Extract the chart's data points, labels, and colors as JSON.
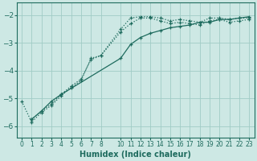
{
  "xlabel": "Humidex (Indice chaleur)",
  "background_color": "#cde8e4",
  "grid_color": "#a0ccc6",
  "line_color": "#1e6b5e",
  "xlim": [
    -0.5,
    23.5
  ],
  "ylim": [
    -6.4,
    -1.55
  ],
  "yticks": [
    -6,
    -5,
    -4,
    -3,
    -2
  ],
  "xticks": [
    0,
    1,
    2,
    3,
    4,
    5,
    6,
    7,
    8,
    10,
    11,
    12,
    13,
    14,
    15,
    16,
    17,
    18,
    19,
    20,
    21,
    22,
    23
  ],
  "curve1_x": [
    0,
    1,
    2,
    3,
    4,
    5,
    6,
    7,
    8,
    10,
    11,
    12,
    13,
    14,
    15,
    16,
    17,
    18,
    19,
    20,
    21,
    22,
    23
  ],
  "curve1_y": [
    -5.1,
    -5.85,
    -5.5,
    -5.25,
    -4.9,
    -4.6,
    -4.35,
    -3.55,
    -3.45,
    -2.5,
    -2.1,
    -2.05,
    -2.05,
    -2.1,
    -2.2,
    -2.15,
    -2.2,
    -2.25,
    -2.1,
    -2.1,
    -2.15,
    -2.1,
    -2.1
  ],
  "curve2_x": [
    1,
    2,
    3,
    4,
    5,
    6,
    7,
    8,
    10,
    11,
    12,
    13,
    14,
    15,
    16,
    17,
    18,
    19,
    20,
    21,
    22,
    23
  ],
  "curve2_y": [
    -5.75,
    -5.45,
    -5.2,
    -4.85,
    -4.55,
    -4.3,
    -3.6,
    -3.45,
    -2.6,
    -2.3,
    -2.1,
    -2.1,
    -2.2,
    -2.3,
    -2.25,
    -2.3,
    -2.35,
    -2.2,
    -2.15,
    -2.25,
    -2.2,
    -2.15
  ],
  "curve3_x": [
    1,
    2,
    3,
    4,
    10,
    11,
    12,
    13,
    14,
    15,
    16,
    17,
    18,
    19,
    20,
    21,
    22,
    23
  ],
  "curve3_y": [
    -5.75,
    -5.45,
    -5.1,
    -4.85,
    -3.55,
    -3.05,
    -2.8,
    -2.65,
    -2.55,
    -2.45,
    -2.4,
    -2.35,
    -2.25,
    -2.25,
    -2.15,
    -2.15,
    -2.1,
    -2.05
  ]
}
